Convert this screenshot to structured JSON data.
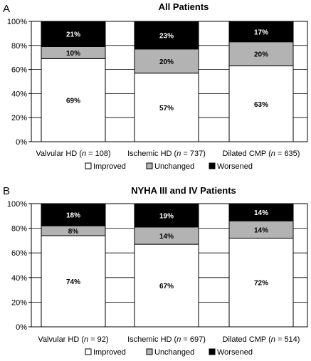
{
  "chart_data": [
    {
      "type": "bar",
      "stacked": true,
      "panel": "A",
      "title": "All Patients",
      "categories": [
        {
          "name": "Valvular HD",
          "n": "108"
        },
        {
          "name": "Ischemic HD",
          "n": "737"
        },
        {
          "name": "Dilated CMP",
          "n": "635"
        }
      ],
      "series": [
        {
          "name": "Improved",
          "values": [
            69,
            57,
            63
          ],
          "color": "#ffffff",
          "labels": [
            "69%",
            "57%",
            "63%"
          ]
        },
        {
          "name": "Unchanged",
          "values": [
            10,
            20,
            20
          ],
          "color": "#b3b3b3",
          "labels": [
            "10%",
            "20%",
            "20%"
          ]
        },
        {
          "name": "Worsened",
          "values": [
            21,
            23,
            17
          ],
          "color": "#000000",
          "labels": [
            "21%",
            "23%",
            "17%"
          ]
        }
      ],
      "yticks": [
        "0%",
        "20%",
        "40%",
        "60%",
        "80%",
        "100%"
      ],
      "ylim": [
        0,
        100
      ],
      "grid": true,
      "legend": "bottom"
    },
    {
      "type": "bar",
      "stacked": true,
      "panel": "B",
      "title": "NYHA III and IV Patients",
      "categories": [
        {
          "name": "Valvular HD",
          "n": "92"
        },
        {
          "name": "Ischemic HD",
          "n": "697"
        },
        {
          "name": "Dilated CMP",
          "n": "514"
        }
      ],
      "series": [
        {
          "name": "Improved",
          "values": [
            74,
            67,
            72
          ],
          "color": "#ffffff",
          "labels": [
            "74%",
            "67%",
            "72%"
          ]
        },
        {
          "name": "Unchanged",
          "values": [
            8,
            14,
            14
          ],
          "color": "#b3b3b3",
          "labels": [
            "8%",
            "14%",
            "14%"
          ]
        },
        {
          "name": "Worsened",
          "values": [
            18,
            19,
            14
          ],
          "color": "#000000",
          "labels": [
            "18%",
            "19%",
            "14%"
          ]
        }
      ],
      "yticks": [
        "0%",
        "20%",
        "40%",
        "60%",
        "80%",
        "100%"
      ],
      "ylim": [
        0,
        100
      ],
      "grid": true,
      "legend": "bottom"
    }
  ]
}
